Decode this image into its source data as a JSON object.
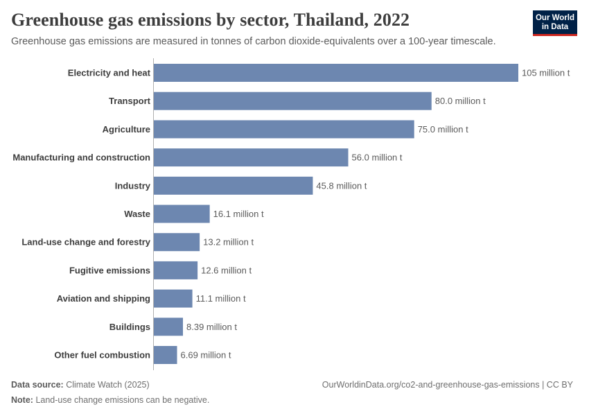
{
  "header": {
    "title": "Greenhouse gas emissions by sector, Thailand, 2022",
    "subtitle": "Greenhouse gas emissions are measured in tonnes of carbon dioxide-equivalents over a 100-year timescale.",
    "logo_line1": "Our World",
    "logo_line2": "in Data"
  },
  "footer": {
    "source_label": "Data source:",
    "source_value": "Climate Watch (2025)",
    "url": "OurWorldinData.org/co2-and-greenhouse-gas-emissions | CC BY",
    "note_label": "Note:",
    "note_value": "Land-use change emissions can be negative."
  },
  "colors": {
    "bar": "#6d87b0",
    "label": "#3d3d3d",
    "value": "#5b5b5b",
    "axis": "#b0b0b0"
  },
  "chart_data": {
    "type": "bar",
    "orientation": "horizontal",
    "categories": [
      "Electricity and heat",
      "Transport",
      "Agriculture",
      "Manufacturing and construction",
      "Industry",
      "Waste",
      "Land-use change and forestry",
      "Fugitive emissions",
      "Aviation and shipping",
      "Buildings",
      "Other fuel combustion"
    ],
    "values": [
      105,
      80.0,
      75.0,
      56.0,
      45.8,
      16.1,
      13.2,
      12.6,
      11.1,
      8.39,
      6.69
    ],
    "value_labels": [
      "105 million t",
      "80.0 million t",
      "75.0 million t",
      "56.0 million t",
      "45.8 million t",
      "16.1 million t",
      "13.2 million t",
      "12.6 million t",
      "11.1 million t",
      "8.39 million t",
      "6.69 million t"
    ],
    "unit": "million t",
    "xlim": [
      0,
      105
    ],
    "grid": false
  }
}
